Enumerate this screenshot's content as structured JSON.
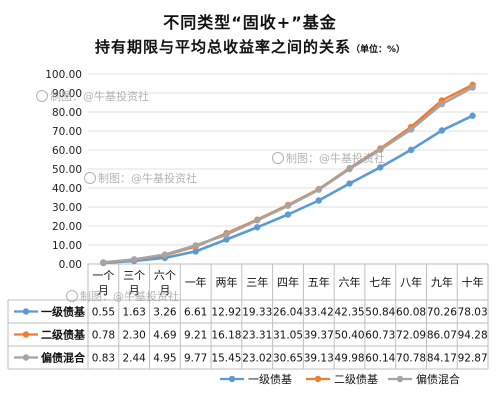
{
  "title_line1": "不同类型“固收+”基金",
  "title_line2": "持有期限与平均总收益率之间的关系",
  "unit_note": "（单位：%）",
  "watermarks": [
    "制图：@牛基投资社",
    "制图：@牛基投资社",
    "制图：@牛基投资社",
    "制图：@牛基投资社"
  ],
  "chart_data": {
    "type": "line",
    "categories": [
      "一个月",
      "三个月",
      "六个月",
      "一年",
      "两年",
      "三年",
      "四年",
      "五年",
      "六年",
      "七年",
      "八年",
      "九年",
      "十年"
    ],
    "category_lines": [
      [
        "一个",
        "月"
      ],
      [
        "三个",
        "月"
      ],
      [
        "六个",
        "月"
      ],
      [
        "一年"
      ],
      [
        "两年"
      ],
      [
        "三年"
      ],
      [
        "四年"
      ],
      [
        "五年"
      ],
      [
        "六年"
      ],
      [
        "七年"
      ],
      [
        "八年"
      ],
      [
        "九年"
      ],
      [
        "十年"
      ]
    ],
    "series": [
      {
        "name": "一级债基",
        "color": "#5b9bd5",
        "values": [
          0.55,
          1.63,
          3.26,
          6.61,
          12.92,
          19.33,
          26.04,
          33.42,
          42.35,
          50.84,
          60.08,
          70.26,
          78.03
        ]
      },
      {
        "name": "二级债基",
        "color": "#ed7d31",
        "values": [
          0.78,
          2.3,
          4.69,
          9.21,
          16.18,
          23.31,
          31.05,
          39.37,
          50.4,
          60.73,
          72.09,
          86.07,
          94.28
        ]
      },
      {
        "name": "偏债混合",
        "color": "#a5a5a5",
        "values": [
          0.83,
          2.44,
          4.95,
          9.77,
          15.45,
          23.02,
          30.65,
          39.13,
          49.98,
          60.14,
          70.78,
          84.17,
          92.87
        ]
      }
    ],
    "table_values": [
      [
        "0.55",
        "1.63",
        "3.26",
        "6.61",
        "12.92",
        "19.33",
        "26.04",
        "33.42",
        "42.35",
        "50.84",
        "60.08",
        "70.26",
        "78.03"
      ],
      [
        "0.78",
        "2.30",
        "4.69",
        "9.21",
        "16.18",
        "23.31",
        "31.05",
        "39.37",
        "50.40",
        "60.73",
        "72.09",
        "86.07",
        "94.28"
      ],
      [
        "0.83",
        "2.44",
        "4.95",
        "9.77",
        "15.45",
        "23.02",
        "30.65",
        "39.13",
        "49.98",
        "60.14",
        "70.78",
        "84.17",
        "92.87"
      ]
    ],
    "y_ticks": [
      "0.00",
      "10.00",
      "20.00",
      "30.00",
      "40.00",
      "50.00",
      "60.00",
      "70.00",
      "80.00",
      "90.00",
      "100.00"
    ],
    "ylim": [
      0,
      100
    ],
    "grid": true,
    "legend_position": "bottom",
    "data_table": true
  }
}
